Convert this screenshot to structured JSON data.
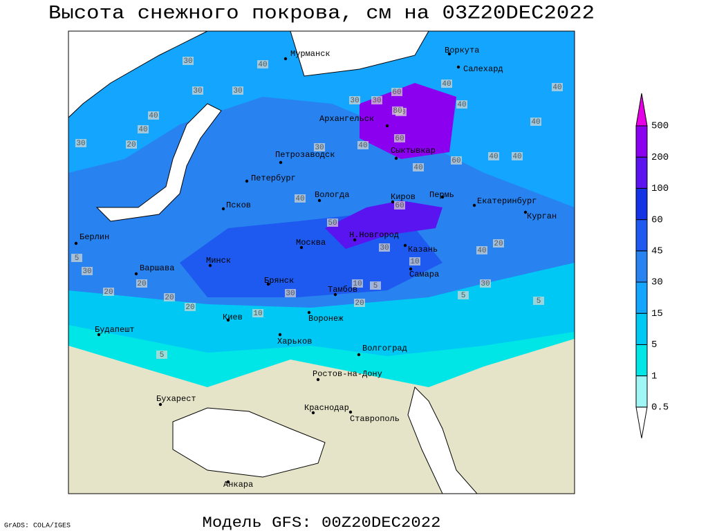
{
  "title": "Высота снежного покрова, см на 03Z20DEC2022",
  "footer": "Модель GFS: 00Z20DEC2022",
  "credit": "GrADS: COLA/IGES",
  "cities": [
    "Мурманск",
    "Воркута",
    "Салехард",
    "Архангельск",
    "Сыктывкар",
    "Петрозаводск",
    "Петербург",
    "Вологда",
    "Киров",
    "Пермь",
    "Екатеринбург",
    "Курган",
    "Псков",
    "Берлин",
    "Москва",
    "Н.Новгород",
    "Казань",
    "Минск",
    "Варшава",
    "Брянск",
    "Самара",
    "Тамбов",
    "Киев",
    "Воронеж",
    "Будапешт",
    "Харьков",
    "Волгоград",
    "Ростов-на-Дону",
    "Бухарест",
    "Краснодар",
    "Ставрополь",
    "Анкара"
  ],
  "contour_labels": [
    40,
    30,
    30,
    40,
    30,
    20,
    30,
    40,
    60,
    30,
    30,
    40,
    60,
    80,
    40,
    40,
    40,
    40,
    60,
    60,
    30,
    40,
    40,
    40,
    50,
    30,
    60,
    40,
    40,
    20,
    20,
    20,
    20,
    30,
    20,
    10,
    30,
    10,
    5,
    5,
    5,
    30,
    20,
    10,
    5,
    5
  ],
  "colorbar": {
    "levels": [
      0.5,
      1,
      5,
      15,
      30,
      45,
      60,
      100,
      200,
      500
    ],
    "colors": [
      "#ffffff",
      "#a0f5f5",
      "#00e6e6",
      "#00c8f5",
      "#14a5ff",
      "#2882f0",
      "#1e5af0",
      "#1432e6",
      "#5a14f0",
      "#8c00f0",
      "#b400e6",
      "#e600e6"
    ]
  }
}
